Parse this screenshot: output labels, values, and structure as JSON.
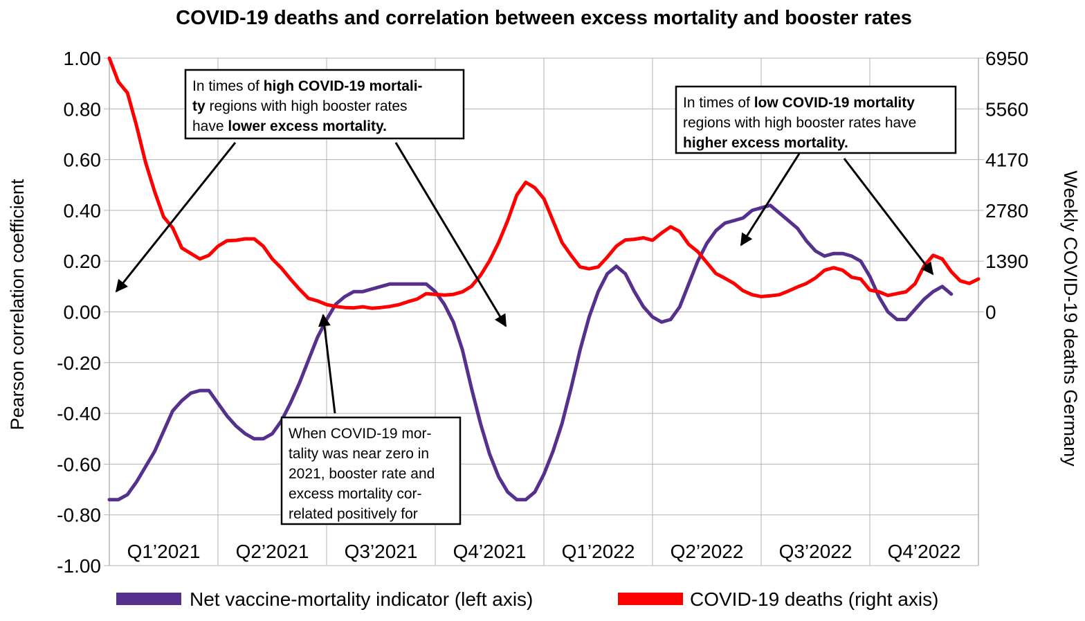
{
  "chart_data": {
    "type": "line",
    "title": "COVID-19 deaths and correlation between excess mortality and booster rates",
    "ylabel_left": "Pearson correlation coefficient",
    "ylabel_right": "Weekly COVID-19 deaths Germany",
    "left_axis": {
      "range": [
        -1.0,
        1.0
      ],
      "ticks": [
        1.0,
        0.8,
        0.6,
        0.4,
        0.2,
        0.0,
        -0.2,
        -0.4,
        -0.6,
        -0.8,
        -1.0
      ],
      "tick_labels": [
        "1.00",
        "0.80",
        "0.60",
        "0.40",
        "0.20",
        "0.00",
        "-0.20",
        "-0.40",
        "-0.60",
        "-0.80",
        "-1.00"
      ]
    },
    "right_axis": {
      "range": [
        -6950,
        6950
      ],
      "ticks": [
        6950,
        5560,
        4170,
        2780,
        1390,
        0
      ],
      "tick_labels": [
        "6950",
        "5560",
        "4170",
        "2780",
        "1390",
        "0"
      ]
    },
    "x_range": [
      0,
      96
    ],
    "quarter_boundaries": [
      0,
      12,
      24,
      36,
      48,
      60,
      72,
      84,
      96
    ],
    "categories": [
      "Q1’2021",
      "Q2’2021",
      "Q3’2021",
      "Q4’2021",
      "Q1’2022",
      "Q2’2022",
      "Q3’2022",
      "Q4’2022"
    ],
    "grid": true,
    "series": [
      {
        "name": "Net vaccine-mortality indicator (left axis)",
        "axis": "left",
        "color": "#55308d",
        "x": [
          0,
          1,
          2,
          3,
          4,
          5,
          6,
          7,
          8,
          9,
          10,
          11,
          12,
          13,
          14,
          15,
          16,
          17,
          18,
          19,
          20,
          21,
          22,
          23,
          24,
          25,
          26,
          27,
          28,
          29,
          30,
          31,
          32,
          33,
          34,
          35,
          36,
          37,
          38,
          39,
          40,
          41,
          42,
          43,
          44,
          45,
          46,
          47,
          48,
          49,
          50,
          51,
          52,
          53,
          54,
          55,
          56,
          57,
          58,
          59,
          60,
          61,
          62,
          63,
          64,
          65,
          66,
          67,
          68,
          69,
          70,
          71,
          72,
          73,
          74,
          75,
          76,
          77,
          78,
          79,
          80,
          81,
          82,
          83,
          84,
          85,
          86,
          87,
          88,
          89,
          90,
          91,
          92,
          93
        ],
        "values": [
          -0.74,
          -0.74,
          -0.72,
          -0.67,
          -0.61,
          -0.55,
          -0.47,
          -0.39,
          -0.35,
          -0.32,
          -0.31,
          -0.31,
          -0.36,
          -0.41,
          -0.45,
          -0.48,
          -0.5,
          -0.5,
          -0.48,
          -0.43,
          -0.36,
          -0.28,
          -0.19,
          -0.1,
          -0.03,
          0.03,
          0.06,
          0.08,
          0.08,
          0.09,
          0.1,
          0.11,
          0.11,
          0.11,
          0.11,
          0.11,
          0.08,
          0.03,
          -0.04,
          -0.15,
          -0.3,
          -0.44,
          -0.56,
          -0.65,
          -0.71,
          -0.74,
          -0.74,
          -0.71,
          -0.64,
          -0.55,
          -0.44,
          -0.3,
          -0.15,
          -0.02,
          0.08,
          0.15,
          0.18,
          0.15,
          0.08,
          0.02,
          -0.02,
          -0.04,
          -0.03,
          0.02,
          0.11,
          0.2,
          0.27,
          0.32,
          0.35,
          0.36,
          0.37,
          0.4,
          0.41,
          0.42,
          0.39,
          0.36,
          0.33,
          0.28,
          0.24,
          0.22,
          0.23,
          0.23,
          0.22,
          0.2,
          0.14,
          0.06,
          0.0,
          -0.03,
          -0.03,
          0.01,
          0.05,
          0.08,
          0.1,
          0.07
        ]
      },
      {
        "name": "COVID-19 deaths (right axis)",
        "axis": "right",
        "color": "#ff0000",
        "x": [
          0,
          1,
          2,
          3,
          4,
          5,
          6,
          7,
          8,
          9,
          10,
          11,
          12,
          13,
          14,
          15,
          16,
          17,
          18,
          19,
          20,
          21,
          22,
          23,
          24,
          25,
          26,
          27,
          28,
          29,
          30,
          31,
          32,
          33,
          34,
          35,
          36,
          37,
          38,
          39,
          40,
          41,
          42,
          43,
          44,
          45,
          46,
          47,
          48,
          49,
          50,
          51,
          52,
          53,
          54,
          55,
          56,
          57,
          58,
          59,
          60,
          61,
          62,
          63,
          64,
          65,
          66,
          67,
          68,
          69,
          70,
          71,
          72,
          73,
          74,
          75,
          76,
          77,
          78,
          79,
          80,
          81,
          82,
          83,
          84,
          85,
          86,
          87,
          88,
          89,
          90,
          91,
          92,
          93,
          94,
          95,
          96
        ],
        "values": [
          6950,
          6300,
          6000,
          5100,
          4100,
          3300,
          2600,
          2300,
          1750,
          1600,
          1450,
          1550,
          1800,
          1950,
          1960,
          2000,
          2000,
          1800,
          1450,
          1200,
          900,
          620,
          370,
          300,
          200,
          150,
          120,
          110,
          140,
          100,
          120,
          150,
          200,
          280,
          350,
          500,
          480,
          460,
          480,
          550,
          700,
          1000,
          1400,
          1900,
          2500,
          3200,
          3550,
          3400,
          3100,
          2500,
          1900,
          1550,
          1230,
          1180,
          1230,
          1500,
          1800,
          1970,
          1990,
          2030,
          1960,
          2160,
          2330,
          2200,
          1850,
          1650,
          1350,
          1050,
          920,
          780,
          580,
          470,
          420,
          440,
          470,
          570,
          680,
          780,
          930,
          1140,
          1210,
          1140,
          950,
          900,
          600,
          550,
          450,
          500,
          550,
          770,
          1260,
          1550,
          1450,
          1100,
          850,
          780,
          900
        ]
      }
    ],
    "annotations": [
      {
        "lines": [
          [
            {
              "t": "In times of ",
              "b": false
            },
            {
              "t": "high COVID-19 mortali-",
              "b": true
            }
          ],
          [
            {
              "t": "ty",
              "b": true
            },
            {
              "t": " regions with high booster rates",
              "b": false
            }
          ],
          [
            {
              "t": "have ",
              "b": false
            },
            {
              "t": "lower excess mortality.",
              "b": true
            }
          ]
        ]
      },
      {
        "lines": [
          [
            {
              "t": "In times of ",
              "b": false
            },
            {
              "t": "low COVID-19 mortality",
              "b": true
            }
          ],
          [
            {
              "t": "regions with high booster rates have",
              "b": false
            }
          ],
          [
            {
              "t": "higher excess mortality.",
              "b": true
            }
          ]
        ]
      },
      {
        "lines": [
          [
            {
              "t": "When COVID-19 mor-",
              "b": false
            }
          ],
          [
            {
              "t": "tality was near zero in",
              "b": false
            }
          ],
          [
            {
              "t": "2021, booster rate and",
              "b": false
            }
          ],
          [
            {
              "t": "excess mortality cor-",
              "b": false
            }
          ],
          [
            {
              "t": "related positively for",
              "b": false
            }
          ]
        ]
      }
    ]
  }
}
